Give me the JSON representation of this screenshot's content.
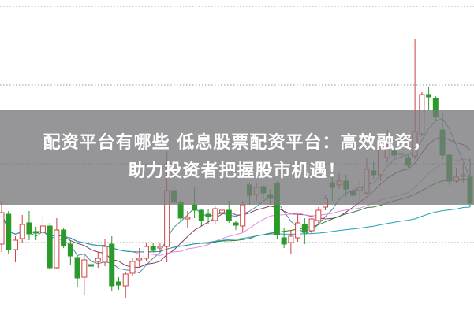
{
  "headline": {
    "line1": "配资平台有哪些 低息股票配资平台：高效融资，",
    "line2": "助力投资者把握股市机遇！"
  },
  "chart_data": {
    "type": "candlestick",
    "title": "",
    "xlabel": "",
    "ylabel": "",
    "grid": "horizontal-dotted",
    "colors": {
      "up": "#d04040",
      "down": "#2a9a2a",
      "grid": "#999999"
    },
    "moving_averages": [
      {
        "period": 5,
        "color": "#4a8fa0"
      },
      {
        "period": 10,
        "color": "#8b3a62"
      },
      {
        "period": 20,
        "color": "#e48ae4"
      },
      {
        "period": 30,
        "color": "#2e7d32"
      },
      {
        "period": 60,
        "color": "#1fa2b8"
      }
    ],
    "candles_ohlc": [
      [
        90,
        130,
        145,
        80
      ],
      [
        128,
        83,
        132,
        78
      ],
      [
        83,
        95,
        100,
        67
      ],
      [
        97,
        115,
        127,
        92
      ],
      [
        117,
        103,
        132,
        95
      ],
      [
        106,
        104,
        112,
        95
      ],
      [
        105,
        113,
        127,
        100
      ],
      [
        113,
        60,
        117,
        57
      ],
      [
        60,
        108,
        123,
        58
      ],
      [
        108,
        88,
        110,
        85
      ],
      [
        90,
        75,
        95,
        63
      ],
      [
        73,
        47,
        75,
        35
      ],
      [
        48,
        70,
        78,
        25
      ],
      [
        64,
        62,
        75,
        55
      ],
      [
        68,
        72,
        80,
        60
      ],
      [
        67,
        87,
        97,
        62
      ],
      [
        90,
        37,
        100,
        30
      ],
      [
        42,
        38,
        48,
        32
      ],
      [
        37,
        52,
        55,
        22
      ],
      [
        53,
        68,
        73,
        50
      ],
      [
        70,
        72,
        85,
        60
      ],
      [
        72,
        87,
        92,
        68
      ],
      [
        87,
        82,
        92,
        80
      ],
      [
        85,
        87,
        92,
        80
      ],
      [
        87,
        158,
        208,
        67
      ],
      [
        158,
        143,
        163,
        140
      ],
      [
        143,
        123,
        147,
        118
      ],
      [
        122,
        124,
        132,
        110
      ],
      [
        140,
        133,
        163,
        123
      ],
      [
        133,
        120,
        135,
        113
      ],
      [
        128,
        125,
        135,
        115
      ],
      [
        120,
        135,
        138,
        115
      ],
      [
        130,
        133,
        135,
        95
      ],
      [
        133,
        120,
        145,
        117
      ],
      [
        117,
        114,
        120,
        108
      ],
      [
        113,
        140,
        145,
        105
      ],
      [
        165,
        152,
        167,
        140
      ],
      [
        153,
        162,
        167,
        145
      ],
      [
        163,
        155,
        165,
        147
      ],
      [
        153,
        148,
        160,
        140
      ],
      [
        167,
        102,
        170,
        97
      ],
      [
        98,
        90,
        110,
        85
      ],
      [
        92,
        100,
        108,
        78
      ],
      [
        98,
        117,
        128,
        93
      ],
      [
        115,
        105,
        123,
        90
      ],
      [
        107,
        122,
        123,
        103
      ],
      [
        120,
        133,
        137,
        115
      ],
      [
        137,
        148,
        152,
        133
      ],
      [
        168,
        162,
        175,
        145
      ],
      [
        165,
        170,
        180,
        160
      ],
      [
        170,
        160,
        178,
        150
      ],
      [
        157,
        152,
        165,
        140
      ],
      [
        158,
        162,
        172,
        145
      ],
      [
        155,
        185,
        200,
        153
      ],
      [
        183,
        178,
        195,
        173
      ],
      [
        178,
        210,
        217,
        170
      ],
      [
        200,
        210,
        235,
        193
      ],
      [
        208,
        203,
        212,
        198
      ],
      [
        205,
        204,
        208,
        200
      ],
      [
        200,
        190,
        203,
        187
      ],
      [
        202,
        233,
        350,
        198
      ],
      [
        230,
        280,
        283,
        227
      ],
      [
        280,
        277,
        290,
        260
      ],
      [
        275,
        252,
        278,
        248
      ],
      [
        235,
        203,
        257,
        197
      ],
      [
        203,
        170,
        205,
        165
      ],
      [
        170,
        175,
        187,
        167
      ],
      [
        176,
        178,
        193,
        167
      ],
      [
        175,
        142,
        200,
        137
      ]
    ],
    "gridlines": [
      392,
      292,
      192,
      92
    ]
  }
}
